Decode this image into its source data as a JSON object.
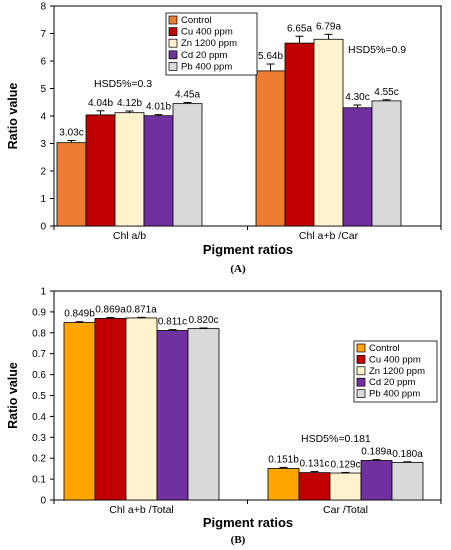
{
  "chart_data": [
    {
      "type": "bar",
      "panel_label": "(A)",
      "xlabel": "Pigment ratios",
      "ylabel": "Ratio value",
      "ylim": [
        0,
        8
      ],
      "yticks": [
        "0",
        "1",
        "2",
        "3",
        "4",
        "5",
        "6",
        "7",
        "8"
      ],
      "categories": [
        "Chl a/b",
        "Chl a+b /Car"
      ],
      "legend_position": "top-center",
      "series": [
        {
          "name": "Control",
          "color": "#ED7D31",
          "values": [
            3.03,
            5.64
          ],
          "labels": [
            "3.03c",
            "5.64b"
          ]
        },
        {
          "name": "Cu 400 ppm",
          "color": "#C00000",
          "values": [
            4.04,
            6.65
          ],
          "labels": [
            "4.04b",
            "6.65a"
          ]
        },
        {
          "name": "Zn 1200 ppm",
          "color": "#FFF2CC",
          "values": [
            4.12,
            6.79
          ],
          "labels": [
            "4.12b",
            "6.79a"
          ]
        },
        {
          "name": "Cd 20 ppm",
          "color": "#7030A0",
          "values": [
            4.01,
            4.3
          ],
          "labels": [
            "4.01b",
            "4.30c"
          ]
        },
        {
          "name": "Pb 400 ppm",
          "color": "#D9D9D9",
          "values": [
            4.45,
            4.55
          ],
          "labels": [
            "4.45a",
            "4.55c"
          ]
        }
      ],
      "annotations": [
        "HSD5%=0.3",
        "HSD5%=0.9"
      ]
    },
    {
      "type": "bar",
      "panel_label": "(B)",
      "xlabel": "Pigment ratios",
      "ylabel": "Ratio value",
      "ylim": [
        0,
        1
      ],
      "yticks": [
        "0",
        "0.1",
        "0.2",
        "0.3",
        "0.4",
        "0.5",
        "0.6",
        "0.7",
        "0.8",
        "0.9",
        "1"
      ],
      "categories": [
        "Chl a+b /Total",
        "Car /Total"
      ],
      "legend_position": "right",
      "series": [
        {
          "name": "Control",
          "color": "#FFA500",
          "values": [
            0.849,
            0.151
          ],
          "labels": [
            "0.849b",
            "0.151b"
          ]
        },
        {
          "name": "Cu 400 ppm",
          "color": "#C00000",
          "values": [
            0.869,
            0.131
          ],
          "labels": [
            "0.869a",
            "0.131c"
          ]
        },
        {
          "name": "Zn 1200 ppm",
          "color": "#FFF2CC",
          "values": [
            0.871,
            0.129
          ],
          "labels": [
            "0.871a",
            "0.129c"
          ]
        },
        {
          "name": "Cd 20 ppm",
          "color": "#7030A0",
          "values": [
            0.811,
            0.189
          ],
          "labels": [
            "0.811c",
            "0.189a"
          ]
        },
        {
          "name": "Pb 400 ppm",
          "color": "#D9D9D9",
          "values": [
            0.82,
            0.18
          ],
          "labels": [
            "0.820c",
            "0.180a"
          ]
        }
      ],
      "annotations": [
        "HSD5%=0.181"
      ]
    }
  ]
}
